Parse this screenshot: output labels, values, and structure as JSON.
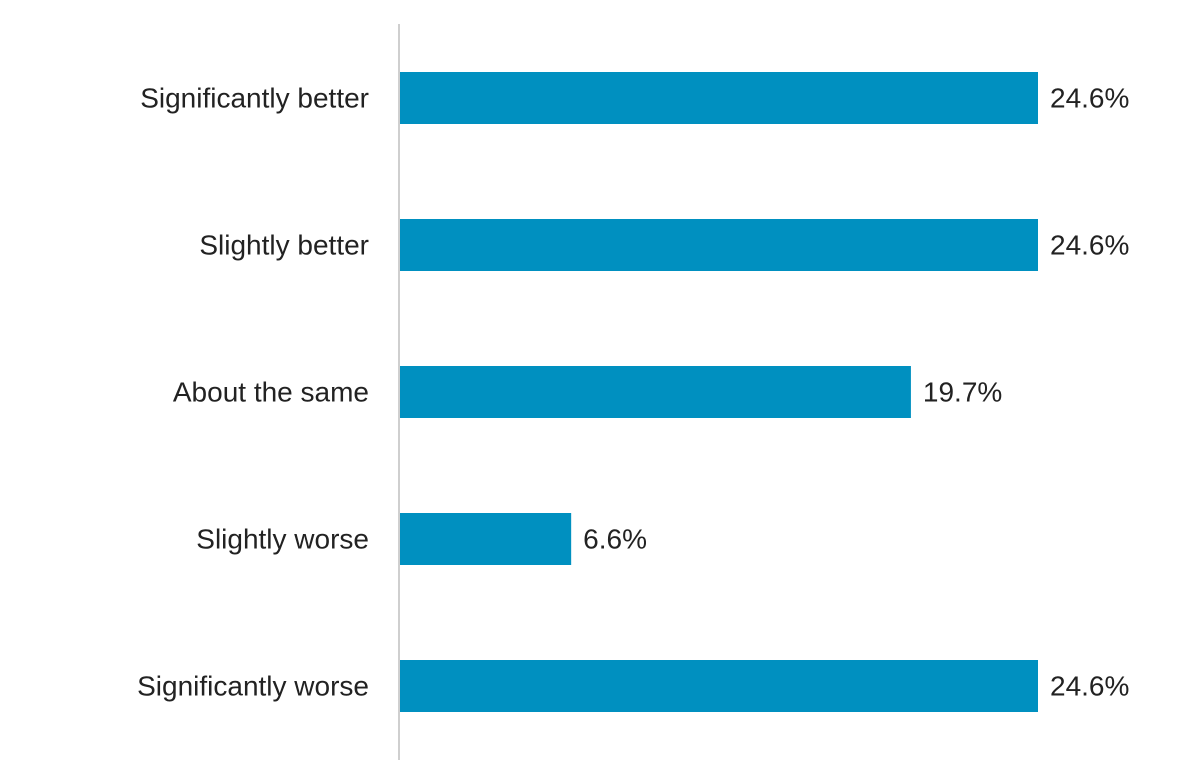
{
  "chart_data": {
    "type": "bar",
    "orientation": "horizontal",
    "categories": [
      "Significantly better",
      "Slightly better",
      "About the same",
      "Slightly worse",
      "Significantly worse"
    ],
    "values": [
      24.6,
      24.6,
      19.7,
      6.6,
      24.6
    ],
    "value_labels": [
      "24.6%",
      "24.6%",
      "19.7%",
      "6.6%",
      "24.6%"
    ],
    "unit": "%",
    "xlim": [
      0,
      24.6
    ],
    "grid": false,
    "legend": "none",
    "colors": {
      "bar": "#0090c0",
      "axis": "#cfcfcf",
      "text": "#222222"
    }
  }
}
